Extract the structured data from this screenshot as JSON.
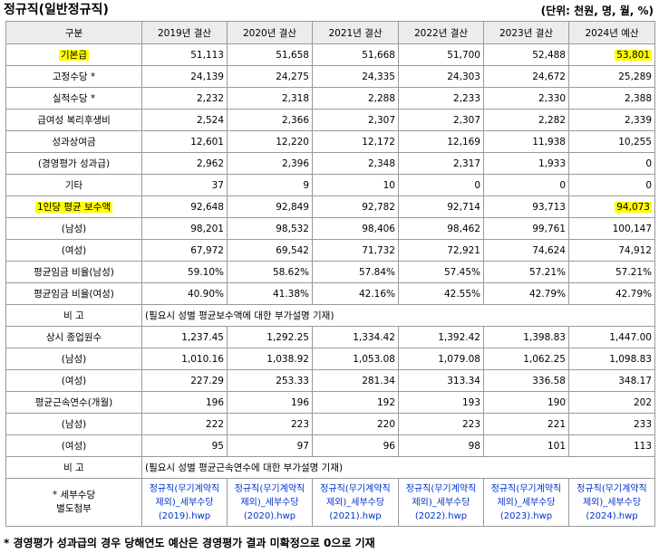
{
  "title": "정규직(일반정규직)",
  "unit": "(단위: 천원, 명, 월, %)",
  "header": [
    "구분",
    "2019년 결산",
    "2020년 결산",
    "2021년 결산",
    "2022년 결산",
    "2023년 결산",
    "2024년 예산"
  ],
  "rows": [
    {
      "label": "기본급",
      "values": [
        "51,113",
        "51,658",
        "51,668",
        "51,700",
        "52,488",
        "53,801"
      ]
    },
    {
      "label": "고정수당 *",
      "values": [
        "24,139",
        "24,275",
        "24,335",
        "24,303",
        "24,672",
        "25,289"
      ]
    },
    {
      "label": "실적수당 *",
      "values": [
        "2,232",
        "2,318",
        "2,288",
        "2,233",
        "2,330",
        "2,388"
      ]
    },
    {
      "label": "급여성 복리후생비",
      "values": [
        "2,524",
        "2,366",
        "2,307",
        "2,307",
        "2,282",
        "2,339"
      ]
    },
    {
      "label": "성과상여금",
      "values": [
        "12,601",
        "12,220",
        "12,172",
        "12,169",
        "11,938",
        "10,255"
      ]
    },
    {
      "label": "(경영평가 성과급)",
      "values": [
        "2,962",
        "2,396",
        "2,348",
        "2,317",
        "1,933",
        "0"
      ]
    },
    {
      "label": "기타",
      "values": [
        "37",
        "9",
        "10",
        "0",
        "0",
        "0"
      ]
    },
    {
      "label": "1인당 평균 보수액",
      "values": [
        "92,648",
        "92,849",
        "92,782",
        "92,714",
        "93,713",
        "94,073"
      ]
    },
    {
      "label": "(남성)",
      "values": [
        "98,201",
        "98,532",
        "98,406",
        "98,462",
        "99,761",
        "100,147"
      ]
    },
    {
      "label": "(여성)",
      "values": [
        "67,972",
        "69,542",
        "71,732",
        "72,921",
        "74,624",
        "74,912"
      ]
    },
    {
      "label": "평균임금 비율(남성)",
      "values": [
        "59.10%",
        "58.62%",
        "57.84%",
        "57.45%",
        "57.21%",
        "57.21%"
      ]
    },
    {
      "label": "평균임금 비율(여성)",
      "values": [
        "40.90%",
        "41.38%",
        "42.16%",
        "42.55%",
        "42.79%",
        "42.79%"
      ]
    }
  ],
  "remark1": {
    "label": "비 고",
    "text": "(필요시 성별 평균보수액에 대한 부가설명 기재)"
  },
  "rows2": [
    {
      "label": "상시 종업원수",
      "values": [
        "1,237.45",
        "1,292.25",
        "1,334.42",
        "1,392.42",
        "1,398.83",
        "1,447.00"
      ]
    },
    {
      "label": "(남성)",
      "values": [
        "1,010.16",
        "1,038.92",
        "1,053.08",
        "1,079.08",
        "1,062.25",
        "1,098.83"
      ]
    },
    {
      "label": "(여성)",
      "values": [
        "227.29",
        "253.33",
        "281.34",
        "313.34",
        "336.58",
        "348.17"
      ]
    },
    {
      "label": "평균근속연수(개월)",
      "values": [
        "196",
        "196",
        "192",
        "193",
        "190",
        "202"
      ]
    },
    {
      "label": "(남성)",
      "values": [
        "222",
        "223",
        "220",
        "223",
        "221",
        "233"
      ]
    },
    {
      "label": "(여성)",
      "values": [
        "95",
        "97",
        "96",
        "98",
        "101",
        "113"
      ]
    }
  ],
  "remark2": {
    "label": "비 고",
    "text": "(필요시 성별 평균근속연수에 대한 부가설명 기재)"
  },
  "attach": {
    "label_line1": "* 세부수당",
    "label_line2": "별도첨부",
    "links": [
      "정규직(무기계약직 제외)_세부수당(2019).hwp",
      "정규직(무기계약직 제외)_세부수당(2020).hwp",
      "정규직(무기계약직 제외)_세부수당(2021).hwp",
      "정규직(무기계약직 제외)_세부수당(2022).hwp",
      "정규직(무기계약직 제외)_세부수당(2023).hwp",
      "정규직(무기계약직 제외)_세부수당(2024).hwp"
    ]
  },
  "footnote": "* 경영평가 성과급의 경우 당해연도 예산은 경영평가 결과 미확정으로 0으로 기재",
  "colors": {
    "highlight": "#ffff00",
    "link": "#0033cc",
    "header_bg": "#ececec",
    "border": "#9a9a9a"
  }
}
